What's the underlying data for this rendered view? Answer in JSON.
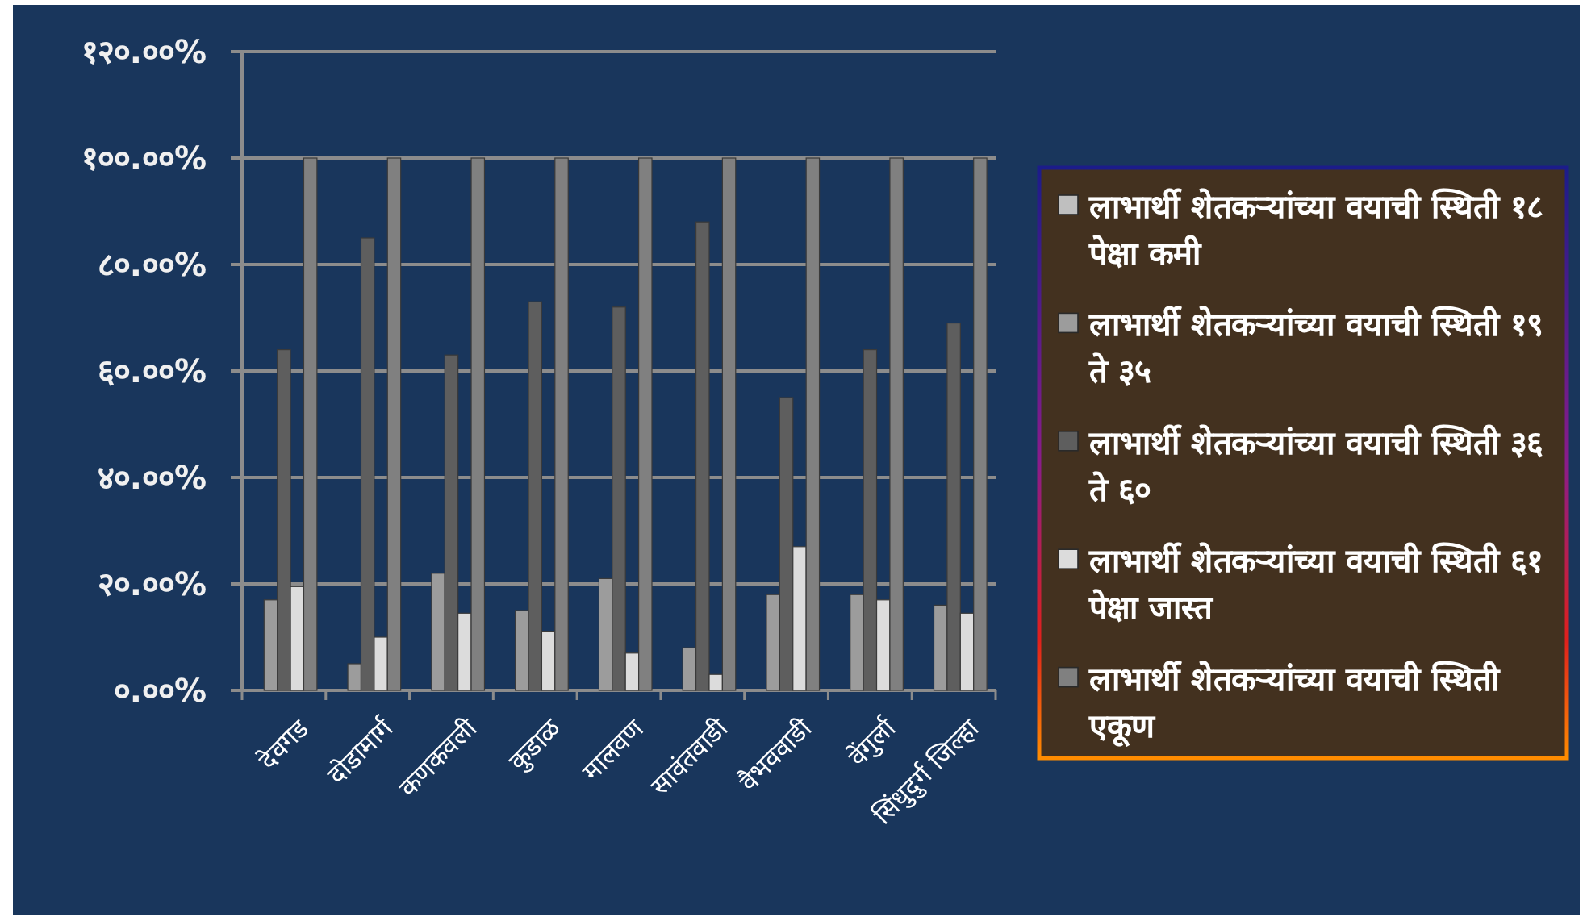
{
  "chart_data": {
    "type": "bar",
    "categories": [
      "देवगड",
      "दोडामार्ग",
      "कणकवली",
      "कुडाळ",
      "मालवण",
      "सावंतवाडी",
      "वैभववाडी",
      "वेंगुर्ला",
      "सिंधुदुर्ग जिल्हा"
    ],
    "series": [
      {
        "name": "लाभार्थी शेतकऱ्यांच्या वयाची स्थिती १८ पेक्षा कमी",
        "color": "#bfbfbf",
        "values": [
          0,
          0,
          0,
          0,
          0,
          0,
          0,
          0,
          0
        ]
      },
      {
        "name": "लाभार्थी शेतकऱ्यांच्या वयाची स्थिती १९ ते ३५",
        "color": "#9c9c9c",
        "values": [
          17,
          5,
          22,
          15,
          21,
          8,
          18,
          18,
          16
        ]
      },
      {
        "name": "लाभार्थी शेतकऱ्यांच्या वयाची स्थिती ३६ ते ६०",
        "color": "#5e5e5e",
        "values": [
          64,
          85,
          63,
          73,
          72,
          88,
          55,
          64,
          69
        ]
      },
      {
        "name": "लाभार्थी शेतकऱ्यांच्या वयाची स्थिती ६१ पेक्षा जास्त",
        "color": "#dcdcdc",
        "values": [
          19.5,
          10,
          14.5,
          11,
          7,
          3,
          27,
          17,
          14.5
        ]
      },
      {
        "name": "लाभार्थी शेतकऱ्यांच्या वयाची स्थिती एकूण",
        "color": "#808080",
        "values": [
          100,
          100,
          100,
          100,
          100,
          100,
          100,
          100,
          100
        ]
      }
    ],
    "ylim": [
      0,
      120
    ],
    "yticks": [
      {
        "value": 0,
        "label": "०.००%"
      },
      {
        "value": 20,
        "label": "२०.००%"
      },
      {
        "value": 40,
        "label": "४०.००%"
      },
      {
        "value": 60,
        "label": "६०.००%"
      },
      {
        "value": 80,
        "label": "८०.००%"
      },
      {
        "value": 100,
        "label": "१००.००%"
      },
      {
        "value": 120,
        "label": "१२०.००%"
      }
    ],
    "grid": "y",
    "legend": "right"
  }
}
